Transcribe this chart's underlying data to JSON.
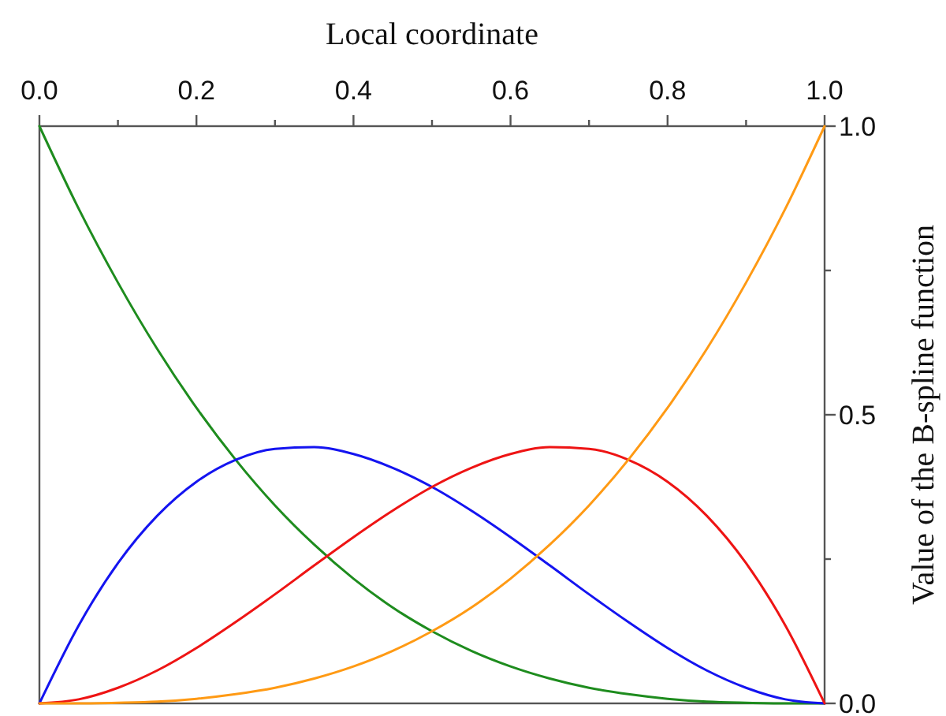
{
  "chart_data": {
    "type": "line",
    "xlabel": "Local coordinate",
    "ylabel": "Value of the B-spline function",
    "x": [
      0,
      0.05,
      0.1,
      0.15,
      0.2,
      0.25,
      0.3,
      0.35,
      0.4,
      0.45,
      0.5,
      0.55,
      0.6,
      0.65,
      0.7,
      0.75,
      0.8,
      0.85,
      0.9,
      0.95,
      1
    ],
    "series": [
      {
        "color": "#1e8c1e",
        "values": [
          1,
          0.857,
          0.729,
          0.614,
          0.512,
          0.422,
          0.343,
          0.275,
          0.216,
          0.166,
          0.125,
          0.091,
          0.064,
          0.043,
          0.027,
          0.016,
          0.008,
          0.003,
          0.001,
          0,
          0
        ]
      },
      {
        "color": "#1414f0",
        "values": [
          0,
          0.135,
          0.243,
          0.325,
          0.384,
          0.422,
          0.441,
          0.444,
          0.432,
          0.408,
          0.375,
          0.334,
          0.288,
          0.239,
          0.189,
          0.141,
          0.096,
          0.057,
          0.027,
          0.007,
          0
        ]
      },
      {
        "color": "#ee1414",
        "values": [
          0,
          0.007,
          0.027,
          0.057,
          0.096,
          0.141,
          0.189,
          0.239,
          0.288,
          0.334,
          0.375,
          0.408,
          0.432,
          0.444,
          0.441,
          0.422,
          0.384,
          0.325,
          0.243,
          0.135,
          0
        ]
      },
      {
        "color": "#ff9a14",
        "values": [
          0,
          0,
          0.001,
          0.003,
          0.008,
          0.016,
          0.027,
          0.043,
          0.064,
          0.091,
          0.125,
          0.166,
          0.216,
          0.275,
          0.343,
          0.422,
          0.512,
          0.614,
          0.729,
          0.857,
          1
        ]
      }
    ],
    "xlim": [
      0,
      1
    ],
    "xticks": [
      {
        "value": 0,
        "label": "0.0"
      },
      {
        "value": 0.1,
        "label": null
      },
      0.2,
      {
        "value": 0.3,
        "label": null
      },
      0.4,
      {
        "value": 0.5,
        "label": null
      },
      0.6,
      {
        "value": 0.7,
        "label": null
      },
      0.8,
      {
        "value": 0.9,
        "label": null
      },
      {
        "value": 1,
        "label": "1.0"
      }
    ],
    "ylim": [
      0,
      1
    ],
    "yticks": [
      {
        "value": 0,
        "label": "0.0"
      },
      {
        "value": 0.25,
        "label": null
      },
      0.5,
      {
        "value": 0.75,
        "label": null
      },
      {
        "value": 1,
        "label": "1.0"
      }
    ]
  }
}
